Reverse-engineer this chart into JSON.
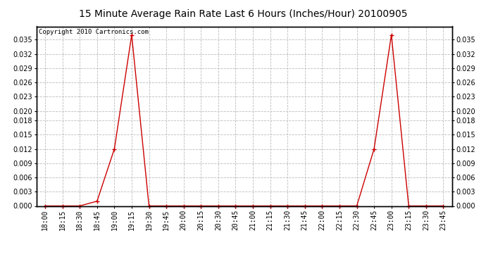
{
  "title": "15 Minute Average Rain Rate Last 6 Hours (Inches/Hour) 20100905",
  "copyright_text": "Copyright 2010 Cartronics.com",
  "line_color": "#cc0000",
  "marker": "+",
  "marker_color": "#cc0000",
  "background_color": "#ffffff",
  "grid_color": "#bbbbbb",
  "tick_labels": [
    "18:00",
    "18:15",
    "18:30",
    "18:45",
    "19:00",
    "19:15",
    "19:30",
    "19:45",
    "20:00",
    "20:15",
    "20:30",
    "20:45",
    "21:00",
    "21:15",
    "21:30",
    "21:45",
    "22:00",
    "22:15",
    "22:30",
    "22:45",
    "23:00",
    "23:15",
    "23:30",
    "23:45"
  ],
  "values": [
    0.0,
    0.0,
    0.0,
    0.001,
    0.012,
    0.036,
    0.0,
    0.0,
    0.0,
    0.0,
    0.0,
    0.0,
    0.0,
    0.0,
    0.0,
    0.0,
    0.0,
    0.0,
    0.0,
    0.012,
    0.036,
    0.0,
    0.0,
    0.0
  ],
  "ylim": [
    0.0,
    0.0378
  ],
  "yticks": [
    0.0,
    0.003,
    0.006,
    0.009,
    0.012,
    0.015,
    0.018,
    0.02,
    0.023,
    0.026,
    0.029,
    0.032,
    0.035
  ],
  "title_fontsize": 10,
  "tick_fontsize": 7,
  "copyright_fontsize": 6.5,
  "linewidth": 1.0,
  "markersize": 4
}
